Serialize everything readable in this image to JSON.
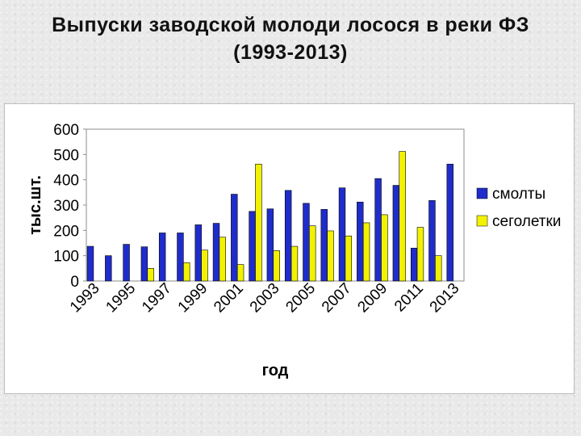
{
  "title": {
    "line1": "Выпуски заводской молоди лосося в реки ФЗ",
    "line2": "(1993-2013)"
  },
  "chart_data": {
    "type": "bar",
    "categories": [
      "1993",
      "1994",
      "1995",
      "1996",
      "1997",
      "1998",
      "1999",
      "2000",
      "2001",
      "2002",
      "2003",
      "2004",
      "2005",
      "2006",
      "2007",
      "2008",
      "2009",
      "2010",
      "2011",
      "2012",
      "2013"
    ],
    "x_tick_labels": [
      "1993",
      "1995",
      "1997",
      "1999",
      "2001",
      "2003",
      "2005",
      "2007",
      "2009",
      "2011",
      "2013"
    ],
    "series": [
      {
        "name": "смолты",
        "color": "#1f2ccc",
        "values": [
          137,
          100,
          145,
          135,
          190,
          190,
          222,
          228,
          343,
          275,
          285,
          358,
          307,
          283,
          368,
          312,
          405,
          378,
          130,
          318,
          462
        ]
      },
      {
        "name": "сеголетки",
        "color": "#f2f200",
        "values": [
          0,
          0,
          0,
          50,
          0,
          72,
          122,
          173,
          65,
          462,
          120,
          137,
          218,
          198,
          178,
          230,
          262,
          512,
          212,
          100,
          0
        ]
      }
    ],
    "xlabel": "год",
    "ylabel": "тыс.шт.",
    "ylim": [
      0,
      600
    ],
    "yticks": [
      0,
      100,
      200,
      300,
      400,
      500,
      600
    ],
    "grid": false,
    "legend_position": "right"
  }
}
